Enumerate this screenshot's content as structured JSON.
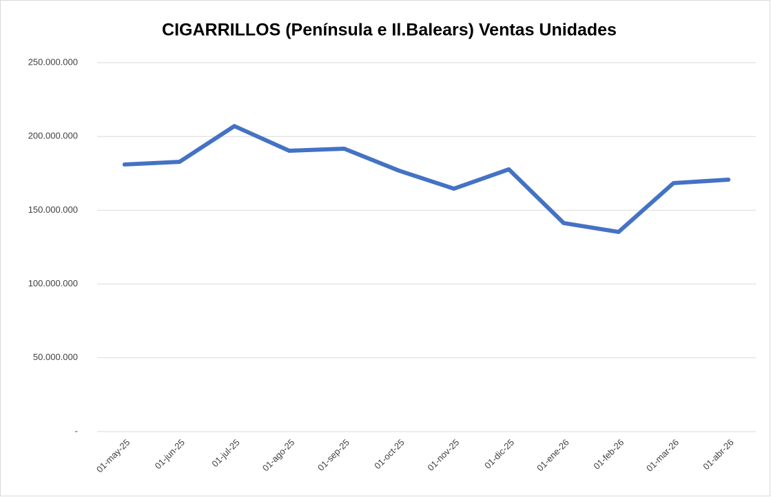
{
  "chart_data": {
    "type": "line",
    "title": "CIGARRILLOS (Península e Il.Balears) Ventas Unidades",
    "categories": [
      "01-may-25",
      "01-jun-25",
      "01-jul-25",
      "01-ago-25",
      "01-sep-25",
      "01-oct-25",
      "01-nov-25",
      "01-dic-25",
      "01-ene-26",
      "01-feb-26",
      "01-mar-26",
      "01-abr-26"
    ],
    "series": [
      {
        "name": "Ventas Unidades",
        "color": "#4472c4",
        "values": [
          181000000,
          182800000,
          207000000,
          190300000,
          191700000,
          176800000,
          164600000,
          177700000,
          141300000,
          135300000,
          168400000,
          170700000
        ]
      }
    ],
    "ylim": [
      0,
      250000000
    ],
    "yticks": [
      {
        "value": 0,
        "label": "-"
      },
      {
        "value": 50000000,
        "label": "50.000.000"
      },
      {
        "value": 100000000,
        "label": "100.000.000"
      },
      {
        "value": 150000000,
        "label": "150.000.000"
      },
      {
        "value": 200000000,
        "label": "200.000.000"
      },
      {
        "value": 250000000,
        "label": "250.000.000"
      }
    ],
    "grid": true
  }
}
